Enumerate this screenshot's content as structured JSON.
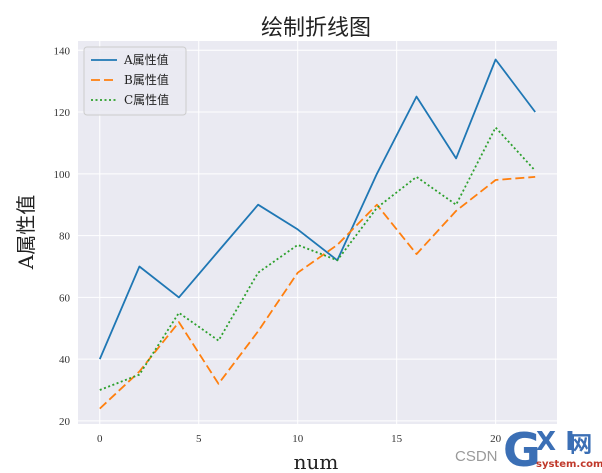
{
  "chart_data": {
    "type": "line",
    "title": "绘制折线图",
    "xlabel": "num",
    "ylabel": "A属性值",
    "x": [
      0,
      2,
      4,
      6,
      8,
      10,
      12,
      14,
      16,
      18,
      20,
      22
    ],
    "xlim": [
      -1.1,
      23.1
    ],
    "ylim": [
      19,
      143
    ],
    "x_ticks": [
      0,
      5,
      10,
      15,
      20
    ],
    "y_ticks": [
      20,
      40,
      60,
      80,
      100,
      120,
      140
    ],
    "grid": true,
    "legend_position": "top-left",
    "series": [
      {
        "name": "A属性值",
        "style": "solid",
        "color": "#1f77b4",
        "values": [
          40,
          70,
          60,
          75,
          90,
          82,
          72,
          100,
          125,
          105,
          137,
          120
        ]
      },
      {
        "name": "B属性值",
        "style": "dashed",
        "color": "#ff7f0e",
        "values": [
          24,
          36,
          52,
          32,
          49,
          68,
          77,
          90,
          74,
          88,
          98,
          99
        ]
      },
      {
        "name": "C属性值",
        "style": "dotted",
        "color": "#2ca02c",
        "values": [
          30,
          35,
          55,
          46,
          68,
          77,
          72,
          89,
          99,
          90,
          115,
          101
        ]
      }
    ]
  },
  "watermark": {
    "csdn": "CSDN",
    "g": "G",
    "xi": "X I",
    "net": "网",
    "domain": "system.com"
  }
}
